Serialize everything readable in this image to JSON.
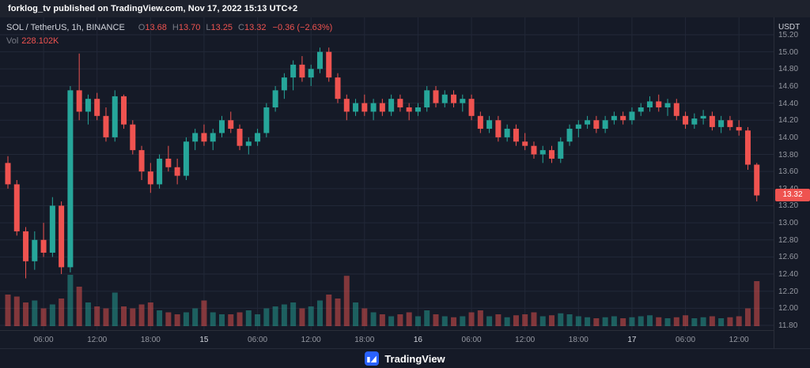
{
  "banner": {
    "text": "forklog_tv published on TradingView.com, Nov 17, 2022 15:13 UTC+2"
  },
  "legend": {
    "symbol": "SOL / TetherUS, 1h, BINANCE",
    "o_label": "O",
    "o_value": "13.68",
    "h_label": "H",
    "h_value": "13.70",
    "l_label": "L",
    "l_value": "13.25",
    "c_label": "C",
    "c_value": "13.32",
    "change": "−0.36 (−2.63%)",
    "vol_label": "Vol",
    "vol_value": "228.102K"
  },
  "price_axis": {
    "currency": "USDT",
    "ticks": [
      "15.20",
      "15.00",
      "14.80",
      "14.60",
      "14.40",
      "14.20",
      "14.00",
      "13.80",
      "13.60",
      "13.40",
      "13.20",
      "13.00",
      "12.80",
      "12.60",
      "12.40",
      "12.20",
      "12.00",
      "11.80"
    ],
    "last_price": "13.32"
  },
  "footer": {
    "brand": "TradingView"
  },
  "colors": {
    "up": "#26a69a",
    "down": "#ef5350",
    "grid": "#222838",
    "bg": "#151a27",
    "last_label_bg": "#ef5350"
  },
  "chart_data": {
    "type": "candlestick+volume",
    "title": "SOL / TetherUS, 1h, BINANCE",
    "symbol": "SOL/USDT",
    "exchange": "BINANCE",
    "interval": "1h",
    "price_range": [
      11.8,
      15.2
    ],
    "volume_unit": "K",
    "time_labels": [
      {
        "label": "06:00",
        "index": 4,
        "major": false
      },
      {
        "label": "12:00",
        "index": 10,
        "major": false
      },
      {
        "label": "18:00",
        "index": 16,
        "major": false
      },
      {
        "label": "15",
        "index": 22,
        "major": true
      },
      {
        "label": "06:00",
        "index": 28,
        "major": false
      },
      {
        "label": "12:00",
        "index": 34,
        "major": false
      },
      {
        "label": "18:00",
        "index": 40,
        "major": false
      },
      {
        "label": "16",
        "index": 46,
        "major": true
      },
      {
        "label": "06:00",
        "index": 52,
        "major": false
      },
      {
        "label": "12:00",
        "index": 58,
        "major": false
      },
      {
        "label": "18:00",
        "index": 64,
        "major": false
      },
      {
        "label": "17",
        "index": 70,
        "major": true
      },
      {
        "label": "06:00",
        "index": 76,
        "major": false
      },
      {
        "label": "12:00",
        "index": 82,
        "major": false
      }
    ],
    "candles": [
      [
        "14 02:00",
        13.7,
        13.78,
        13.4,
        13.45,
        160
      ],
      [
        "14 03:00",
        13.45,
        13.5,
        12.85,
        12.9,
        150
      ],
      [
        "14 04:00",
        12.9,
        12.95,
        12.35,
        12.55,
        120
      ],
      [
        "14 05:00",
        12.55,
        12.9,
        12.45,
        12.8,
        130
      ],
      [
        "14 06:00",
        12.8,
        13.0,
        12.6,
        12.65,
        90
      ],
      [
        "14 07:00",
        12.65,
        13.3,
        12.6,
        13.2,
        110
      ],
      [
        "14 08:00",
        13.2,
        13.25,
        12.4,
        12.48,
        140
      ],
      [
        "14 09:00",
        12.48,
        14.6,
        12.42,
        14.55,
        260
      ],
      [
        "14 10:00",
        14.55,
        14.98,
        14.2,
        14.3,
        200
      ],
      [
        "14 11:00",
        14.3,
        14.5,
        14.15,
        14.45,
        120
      ],
      [
        "14 12:00",
        14.45,
        14.52,
        14.2,
        14.25,
        100
      ],
      [
        "14 13:00",
        14.25,
        14.35,
        13.95,
        14.0,
        90
      ],
      [
        "14 14:00",
        14.0,
        14.55,
        13.95,
        14.48,
        170
      ],
      [
        "14 15:00",
        14.48,
        14.5,
        14.1,
        14.15,
        100
      ],
      [
        "14 16:00",
        14.15,
        14.2,
        13.8,
        13.85,
        90
      ],
      [
        "14 17:00",
        13.85,
        13.9,
        13.5,
        13.6,
        110
      ],
      [
        "14 18:00",
        13.6,
        13.7,
        13.35,
        13.45,
        120
      ],
      [
        "14 19:00",
        13.45,
        13.8,
        13.4,
        13.75,
        80
      ],
      [
        "14 20:00",
        13.75,
        13.9,
        13.6,
        13.65,
        70
      ],
      [
        "14 21:00",
        13.65,
        13.75,
        13.45,
        13.55,
        60
      ],
      [
        "14 22:00",
        13.55,
        14.0,
        13.5,
        13.95,
        70
      ],
      [
        "14 23:00",
        13.95,
        14.1,
        13.85,
        14.05,
        90
      ],
      [
        "15 00:00",
        14.05,
        14.15,
        13.9,
        13.95,
        130
      ],
      [
        "15 01:00",
        13.95,
        14.1,
        13.85,
        14.05,
        70
      ],
      [
        "15 02:00",
        14.05,
        14.25,
        14.0,
        14.2,
        60
      ],
      [
        "15 03:00",
        14.2,
        14.3,
        14.05,
        14.1,
        60
      ],
      [
        "15 04:00",
        14.1,
        14.15,
        13.85,
        13.9,
        70
      ],
      [
        "15 05:00",
        13.9,
        14.0,
        13.8,
        13.95,
        80
      ],
      [
        "15 06:00",
        13.95,
        14.1,
        13.9,
        14.05,
        60
      ],
      [
        "15 07:00",
        14.05,
        14.4,
        14.0,
        14.35,
        90
      ],
      [
        "15 08:00",
        14.35,
        14.6,
        14.3,
        14.55,
        100
      ],
      [
        "15 09:00",
        14.55,
        14.75,
        14.45,
        14.7,
        110
      ],
      [
        "15 10:00",
        14.7,
        14.9,
        14.55,
        14.85,
        120
      ],
      [
        "15 11:00",
        14.85,
        14.95,
        14.65,
        14.7,
        90
      ],
      [
        "15 12:00",
        14.7,
        14.85,
        14.6,
        14.8,
        100
      ],
      [
        "15 13:00",
        14.8,
        15.05,
        14.75,
        15.0,
        130
      ],
      [
        "15 14:00",
        15.0,
        15.05,
        14.65,
        14.7,
        160
      ],
      [
        "15 15:00",
        14.7,
        14.75,
        14.4,
        14.45,
        140
      ],
      [
        "15 16:00",
        14.45,
        14.5,
        14.2,
        14.3,
        255
      ],
      [
        "15 17:00",
        14.3,
        14.45,
        14.25,
        14.4,
        120
      ],
      [
        "15 18:00",
        14.4,
        14.5,
        14.25,
        14.3,
        90
      ],
      [
        "15 19:00",
        14.3,
        14.45,
        14.2,
        14.4,
        70
      ],
      [
        "15 20:00",
        14.4,
        14.45,
        14.25,
        14.3,
        60
      ],
      [
        "15 21:00",
        14.3,
        14.5,
        14.25,
        14.45,
        50
      ],
      [
        "15 22:00",
        14.45,
        14.5,
        14.3,
        14.35,
        60
      ],
      [
        "15 23:00",
        14.35,
        14.4,
        14.2,
        14.3,
        70
      ],
      [
        "16 00:00",
        14.3,
        14.4,
        14.25,
        14.35,
        50
      ],
      [
        "16 01:00",
        14.35,
        14.6,
        14.3,
        14.55,
        80
      ],
      [
        "16 02:00",
        14.55,
        14.6,
        14.35,
        14.4,
        60
      ],
      [
        "16 03:00",
        14.4,
        14.55,
        14.35,
        14.5,
        50
      ],
      [
        "16 04:00",
        14.5,
        14.55,
        14.35,
        14.4,
        45
      ],
      [
        "16 05:00",
        14.4,
        14.5,
        14.3,
        14.45,
        50
      ],
      [
        "16 06:00",
        14.45,
        14.5,
        14.2,
        14.25,
        70
      ],
      [
        "16 07:00",
        14.25,
        14.3,
        14.05,
        14.1,
        80
      ],
      [
        "16 08:00",
        14.1,
        14.25,
        14.05,
        14.2,
        50
      ],
      [
        "16 09:00",
        14.2,
        14.25,
        13.95,
        14.0,
        60
      ],
      [
        "16 10:00",
        14.0,
        14.15,
        13.95,
        14.1,
        45
      ],
      [
        "16 11:00",
        14.1,
        14.15,
        13.9,
        13.95,
        55
      ],
      [
        "16 12:00",
        13.95,
        14.05,
        13.85,
        13.9,
        60
      ],
      [
        "16 13:00",
        13.9,
        13.95,
        13.75,
        13.8,
        70
      ],
      [
        "16 14:00",
        13.8,
        13.9,
        13.7,
        13.85,
        50
      ],
      [
        "16 15:00",
        13.85,
        13.9,
        13.7,
        13.75,
        55
      ],
      [
        "16 16:00",
        13.75,
        14.0,
        13.7,
        13.95,
        65
      ],
      [
        "16 17:00",
        13.95,
        14.15,
        13.9,
        14.1,
        60
      ],
      [
        "16 18:00",
        14.1,
        14.2,
        14.0,
        14.15,
        50
      ],
      [
        "16 19:00",
        14.15,
        14.25,
        14.1,
        14.2,
        45
      ],
      [
        "16 20:00",
        14.2,
        14.25,
        14.05,
        14.1,
        40
      ],
      [
        "16 21:00",
        14.1,
        14.25,
        14.05,
        14.2,
        45
      ],
      [
        "16 22:00",
        14.2,
        14.3,
        14.15,
        14.25,
        50
      ],
      [
        "16 23:00",
        14.25,
        14.3,
        14.15,
        14.2,
        40
      ],
      [
        "17 00:00",
        14.2,
        14.35,
        14.15,
        14.3,
        45
      ],
      [
        "17 01:00",
        14.3,
        14.4,
        14.25,
        14.35,
        50
      ],
      [
        "17 02:00",
        14.35,
        14.48,
        14.3,
        14.42,
        55
      ],
      [
        "17 03:00",
        14.42,
        14.5,
        14.3,
        14.35,
        45
      ],
      [
        "17 04:00",
        14.35,
        14.45,
        14.25,
        14.4,
        40
      ],
      [
        "17 05:00",
        14.4,
        14.45,
        14.2,
        14.25,
        45
      ],
      [
        "17 06:00",
        14.25,
        14.3,
        14.1,
        14.15,
        55
      ],
      [
        "17 07:00",
        14.15,
        14.28,
        14.1,
        14.22,
        40
      ],
      [
        "17 08:00",
        14.22,
        14.32,
        14.15,
        14.25,
        45
      ],
      [
        "17 09:00",
        14.25,
        14.3,
        14.08,
        14.12,
        50
      ],
      [
        "17 10:00",
        14.12,
        14.25,
        14.05,
        14.2,
        40
      ],
      [
        "17 11:00",
        14.2,
        14.25,
        14.08,
        14.12,
        45
      ],
      [
        "17 12:00",
        14.12,
        14.2,
        14.02,
        14.08,
        50
      ],
      [
        "17 13:00",
        14.08,
        14.12,
        13.62,
        13.68,
        90
      ],
      [
        "17 14:00",
        13.68,
        13.7,
        13.25,
        13.32,
        228
      ]
    ]
  }
}
